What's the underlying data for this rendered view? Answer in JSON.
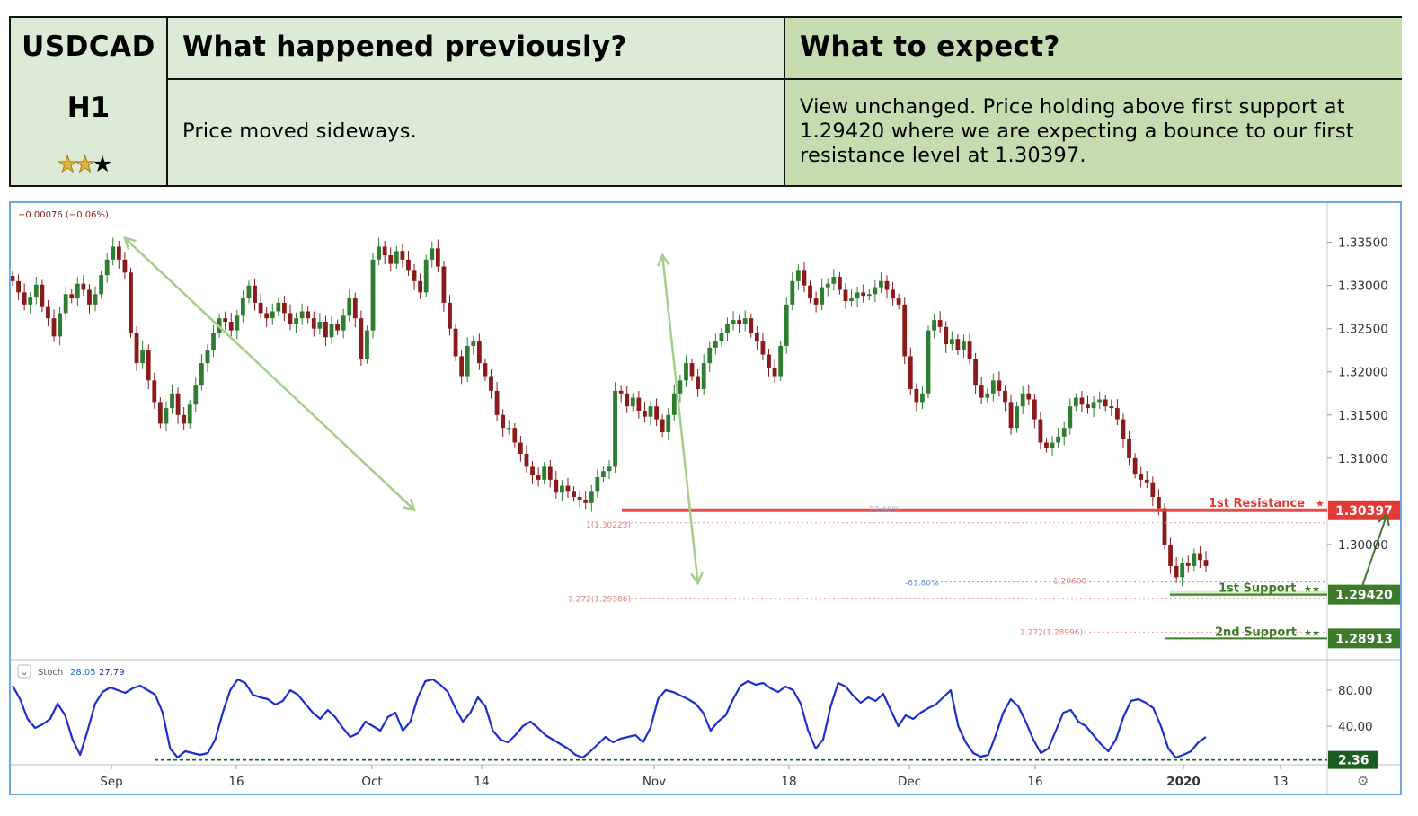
{
  "header": {
    "symbol": "USDCAD",
    "timeframe": "H1",
    "rating": {
      "filled": 2,
      "total": 3
    },
    "prev_title": "What happened previously?",
    "prev_text": "Price moved sideways.",
    "expect_title": "What to expect?",
    "expect_text": "View unchanged. Price holding above first support at 1.29420 where we are expecting a bounce to our first resistance level at 1.30397."
  },
  "colors": {
    "header_light": "#dcebd6",
    "header_dark": "#c4dcb0",
    "candle_up": "#2e7d32",
    "candle_down": "#8b1a1a",
    "resistance": "#e53935",
    "support": "#3d7a2a",
    "trend_arrow": "#a3cf8b",
    "stoch": "#1a2fd0",
    "frame": "#6fa8dc"
  },
  "chart_data": [
    {
      "type": "line",
      "title": "",
      "legend_readout": "−0.00076 (−0.06%)",
      "x_labels": [
        "Sep",
        "16",
        "Oct",
        "14",
        "Nov",
        "18",
        "Dec",
        "16",
        "2020",
        "13"
      ],
      "y_ticks": [
        "1.33500",
        "1.33000",
        "1.32500",
        "1.32000",
        "1.31500",
        "1.31000",
        "1.30000"
      ],
      "ylim": [
        1.2875,
        1.3385
      ],
      "grid": false,
      "series": [
        {
          "kind": "candlestick",
          "close": [
            1.3305,
            1.3292,
            1.3278,
            1.3286,
            1.3301,
            1.3275,
            1.3262,
            1.3241,
            1.3268,
            1.329,
            1.3285,
            1.3302,
            1.3295,
            1.3278,
            1.329,
            1.3312,
            1.333,
            1.3345,
            1.333,
            1.3315,
            1.3245,
            1.321,
            1.3225,
            1.319,
            1.3165,
            1.314,
            1.3158,
            1.3175,
            1.315,
            1.314,
            1.3162,
            1.3185,
            1.321,
            1.3225,
            1.3245,
            1.3262,
            1.3258,
            1.3248,
            1.3265,
            1.3285,
            1.33,
            1.328,
            1.3268,
            1.3262,
            1.327,
            1.328,
            1.3268,
            1.3255,
            1.3262,
            1.327,
            1.3262,
            1.325,
            1.3258,
            1.324,
            1.3255,
            1.3248,
            1.3265,
            1.3285,
            1.3262,
            1.3215,
            1.3248,
            1.333,
            1.3345,
            1.3335,
            1.3325,
            1.334,
            1.333,
            1.3318,
            1.3305,
            1.3292,
            1.333,
            1.3343,
            1.3322,
            1.328,
            1.325,
            1.3218,
            1.3195,
            1.323,
            1.3235,
            1.321,
            1.3195,
            1.3178,
            1.315,
            1.3135,
            1.3135,
            1.3118,
            1.3105,
            1.309,
            1.308,
            1.3075,
            1.309,
            1.3075,
            1.306,
            1.3068,
            1.3062,
            1.3055,
            1.3052,
            1.3048,
            1.3062,
            1.3078,
            1.3085,
            1.309,
            1.3178,
            1.3175,
            1.316,
            1.317,
            1.3155,
            1.3148,
            1.316,
            1.3145,
            1.313,
            1.315,
            1.3175,
            1.319,
            1.321,
            1.3195,
            1.318,
            1.321,
            1.3228,
            1.3235,
            1.3245,
            1.3255,
            1.326,
            1.3255,
            1.3262,
            1.3245,
            1.3235,
            1.322,
            1.3205,
            1.3195,
            1.323,
            1.3278,
            1.3305,
            1.3318,
            1.33,
            1.3285,
            1.3278,
            1.3298,
            1.3302,
            1.331,
            1.3295,
            1.3282,
            1.3285,
            1.3292,
            1.3288,
            1.329,
            1.3298,
            1.3305,
            1.3295,
            1.3285,
            1.3278,
            1.3218,
            1.318,
            1.3165,
            1.3175,
            1.3248,
            1.326,
            1.3252,
            1.3232,
            1.3238,
            1.3225,
            1.3235,
            1.3215,
            1.3185,
            1.317,
            1.3175,
            1.319,
            1.3178,
            1.3165,
            1.3135,
            1.316,
            1.3175,
            1.3168,
            1.3145,
            1.3118,
            1.3112,
            1.3118,
            1.3125,
            1.3135,
            1.316,
            1.317,
            1.3162,
            1.3158,
            1.3165,
            1.3168,
            1.316,
            1.3158,
            1.3145,
            1.3122,
            1.31,
            1.3082,
            1.3075,
            1.3072,
            1.3055,
            1.3042,
            1.3,
            1.2975,
            1.2962,
            1.2978,
            1.2975,
            1.299,
            1.2982,
            1.2975
          ]
        },
        {
          "name": "1st Resistance",
          "kind": "horizontal_level",
          "value": 1.30397,
          "label": "1st Resistance",
          "price_label": "1.30397",
          "stars": 1
        },
        {
          "name": "1st Support",
          "kind": "horizontal_level",
          "value": 1.2942,
          "label": "1st Support",
          "price_label": "1.29420",
          "stars": 2
        },
        {
          "name": "2nd Support",
          "kind": "horizontal_level",
          "value": 1.28913,
          "label": "2nd Support",
          "price_label": "1.28913",
          "stars": 2
        }
      ],
      "annotations": {
        "fib_labels": [
          "23.60%",
          "1(1.30223)",
          "-61.80%",
          "1.29600",
          "1.272(1.29386)",
          "1.272(1.28996)"
        ],
        "trend_arrows": [
          {
            "from": [
              19,
              1.3355
            ],
            "to": [
              68,
              1.304
            ]
          },
          {
            "from": [
              110,
              1.3335
            ],
            "to": [
              116,
              1.2955
            ]
          },
          {
            "from": [
              227,
              1.2955
            ],
            "to": [
              229,
              1.3035
            ]
          }
        ]
      }
    },
    {
      "type": "line",
      "title": "Stoch",
      "readout_k": "28.05",
      "readout_d": "27.79",
      "y_ticks": [
        "80.00",
        "40.00"
      ],
      "ylim": [
        0,
        110
      ],
      "level": {
        "value": 2.36,
        "label": "2.36"
      },
      "series": [
        {
          "name": "Stoch",
          "values": [
            85,
            70,
            48,
            38,
            42,
            48,
            65,
            52,
            25,
            8,
            35,
            65,
            78,
            83,
            80,
            77,
            82,
            85,
            80,
            75,
            55,
            15,
            5,
            12,
            10,
            8,
            10,
            25,
            55,
            80,
            92,
            88,
            75,
            72,
            70,
            64,
            68,
            80,
            75,
            65,
            55,
            48,
            58,
            50,
            38,
            28,
            32,
            45,
            40,
            35,
            50,
            55,
            35,
            45,
            72,
            90,
            92,
            86,
            78,
            60,
            45,
            55,
            72,
            62,
            35,
            25,
            22,
            30,
            40,
            45,
            38,
            30,
            25,
            20,
            15,
            8,
            5,
            12,
            20,
            28,
            22,
            26,
            28,
            30,
            22,
            38,
            70,
            80,
            78,
            74,
            70,
            65,
            55,
            35,
            45,
            52,
            70,
            85,
            90,
            86,
            88,
            82,
            78,
            84,
            80,
            65,
            35,
            15,
            25,
            62,
            88,
            84,
            74,
            66,
            72,
            68,
            76,
            58,
            40,
            52,
            48,
            55,
            60,
            64,
            72,
            80,
            40,
            22,
            10,
            6,
            8,
            30,
            55,
            70,
            62,
            45,
            25,
            10,
            15,
            35,
            55,
            58,
            45,
            40,
            30,
            20,
            12,
            25,
            50,
            68,
            70,
            66,
            60,
            40,
            15,
            5,
            8,
            12,
            22,
            28
          ]
        }
      ]
    }
  ]
}
